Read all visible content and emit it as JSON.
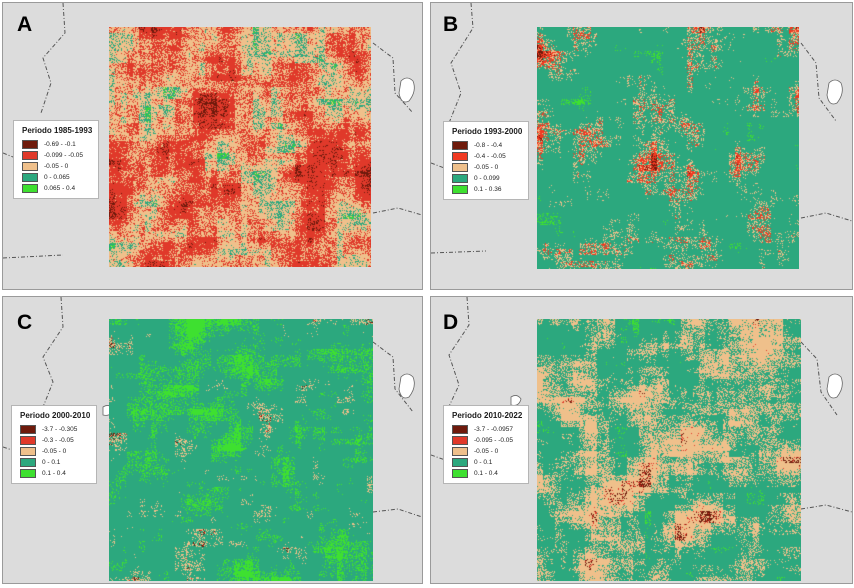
{
  "panels": [
    {
      "letter": "A",
      "legend": {
        "title": "Periodo 1985-1993",
        "items": [
          {
            "label": "-0.69 - -0.1",
            "color": "#6e1a0c"
          },
          {
            "label": "-0.099 - -0.05",
            "color": "#e0392a"
          },
          {
            "label": "-0.05 - 0",
            "color": "#efc08b"
          },
          {
            "label": "0 - 0.065",
            "color": "#2ca87e"
          },
          {
            "label": "0.065 - 0.4",
            "color": "#3ee030"
          }
        ]
      }
    },
    {
      "letter": "B",
      "legend": {
        "title": "Periodo 1993-2000",
        "items": [
          {
            "label": "-0.8 - -0.4",
            "color": "#6e1a0c"
          },
          {
            "label": "-0.4 - -0.05",
            "color": "#f03a22"
          },
          {
            "label": "-0.05 - 0",
            "color": "#efc08b"
          },
          {
            "label": "0 - 0.099",
            "color": "#2ca87e"
          },
          {
            "label": "0.1 - 0.36",
            "color": "#3ee030"
          }
        ]
      }
    },
    {
      "letter": "C",
      "legend": {
        "title": "Periodo 2000-2010",
        "items": [
          {
            "label": "-3.7 - -0.305",
            "color": "#6e1a0c"
          },
          {
            "label": "-0.3 - -0.05",
            "color": "#e0392a"
          },
          {
            "label": "-0.05 - 0",
            "color": "#efc08b"
          },
          {
            "label": "0 - 0.1",
            "color": "#2ca87e"
          },
          {
            "label": "0.1 - 0.4",
            "color": "#3ee030"
          }
        ]
      }
    },
    {
      "letter": "D",
      "legend": {
        "title": "Periodo 2010-2022",
        "items": [
          {
            "label": "-3.7 - -0.0957",
            "color": "#6e1a0c"
          },
          {
            "label": "-0.095 - -0.05",
            "color": "#e0392a"
          },
          {
            "label": "-0.05 - 0",
            "color": "#efc08b"
          },
          {
            "label": "0 - 0.1",
            "color": "#2ca87e"
          },
          {
            "label": "0.1 - 0.4",
            "color": "#3ee030"
          }
        ]
      }
    }
  ]
}
